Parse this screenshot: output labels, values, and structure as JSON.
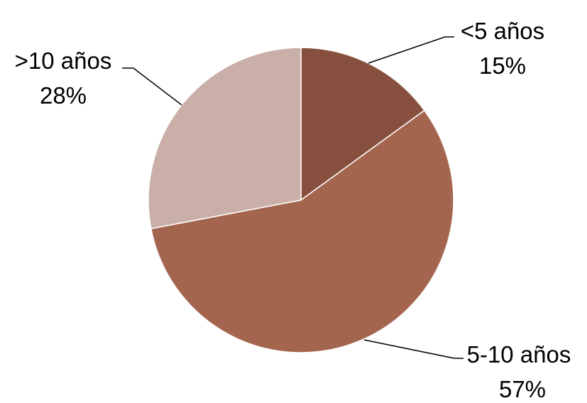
{
  "chart_data": {
    "type": "pie",
    "start_angle_deg": 0,
    "direction": "clockwise",
    "slices": [
      {
        "label": "<5 años",
        "value": 15,
        "value_label": "15%",
        "color": "#87503E"
      },
      {
        "label": "5-10 años",
        "value": 57,
        "value_label": "57%",
        "color": "#A4654F"
      },
      {
        "label": ">10 años",
        "value": 28,
        "value_label": "28%",
        "color": "#C9AFA8"
      }
    ],
    "legend": "none",
    "data_labels": "outside with leader lines"
  }
}
